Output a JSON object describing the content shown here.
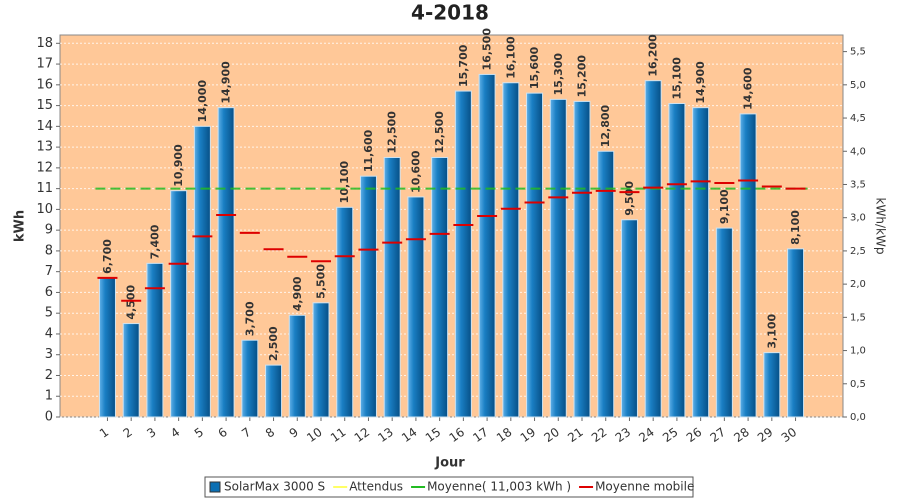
{
  "chart_data": {
    "type": "bar",
    "title": "4-2018",
    "x_label": "Jour",
    "y_label": "kWh",
    "y2_label": "kWh/kWp",
    "categories": [
      "1",
      "2",
      "3",
      "4",
      "5",
      "6",
      "7",
      "8",
      "9",
      "10",
      "11",
      "12",
      "13",
      "14",
      "15",
      "16",
      "17",
      "18",
      "19",
      "20",
      "21",
      "22",
      "23",
      "24",
      "25",
      "26",
      "27",
      "28",
      "29",
      "30"
    ],
    "ylim": [
      0,
      18.4
    ],
    "yticks": [
      0,
      1,
      2,
      3,
      4,
      5,
      6,
      7,
      8,
      9,
      10,
      11,
      12,
      13,
      14,
      15,
      16,
      17,
      18
    ],
    "y2lim": [
      0,
      5.75
    ],
    "y2ticks": [
      {
        "value": 0,
        "label": "0,0"
      },
      {
        "value": 0.5,
        "label": "0,5"
      },
      {
        "value": 1,
        "label": "1,0"
      },
      {
        "value": 1.5,
        "label": "1,5"
      },
      {
        "value": 2,
        "label": "2,0"
      },
      {
        "value": 2.5,
        "label": "2,5"
      },
      {
        "value": 3,
        "label": "3,0"
      },
      {
        "value": 3.5,
        "label": "3,5"
      },
      {
        "value": 4,
        "label": "4,0"
      },
      {
        "value": 4.5,
        "label": "4,5"
      },
      {
        "value": 5,
        "label": "5,0"
      },
      {
        "value": 5.5,
        "label": "5,5"
      }
    ],
    "grid": true,
    "series": [
      {
        "name": "SolarMax 3000 S",
        "color": "#0b6fb3",
        "values": [
          6.7,
          4.5,
          7.4,
          10.9,
          14.0,
          14.9,
          3.7,
          2.5,
          4.9,
          5.5,
          10.1,
          11.6,
          12.5,
          10.6,
          12.5,
          15.7,
          16.5,
          16.1,
          15.6,
          15.3,
          15.2,
          12.8,
          9.5,
          16.2,
          15.1,
          14.9,
          9.1,
          14.6,
          3.1,
          8.1
        ],
        "value_labels": [
          "6,700",
          "4,500",
          "7,400",
          "10,900",
          "14,000",
          "14,900",
          "3,700",
          "2,500",
          "4,900",
          "5,500",
          "10,100",
          "11,600",
          "12,500",
          "10,600",
          "12,500",
          "15,700",
          "16,500",
          "16,100",
          "15,600",
          "15,300",
          "15,200",
          "12,800",
          "9,500",
          "16,200",
          "15,100",
          "14,900",
          "9,100",
          "14,600",
          "3,100",
          "8,100"
        ]
      },
      {
        "name": "Attendus",
        "color": "#ffff66"
      },
      {
        "name": "Moyenne( 11,003 kWh )",
        "color": "#22bb22",
        "value": 11.003
      },
      {
        "name": "Moyenne mobile",
        "color": "#dd0000",
        "values": [
          6.7,
          5.6,
          6.2,
          7.38,
          8.7,
          9.73,
          8.87,
          8.08,
          7.72,
          7.5,
          7.74,
          8.06,
          8.4,
          8.56,
          8.82,
          9.25,
          9.68,
          10.03,
          10.33,
          10.58,
          10.8,
          10.89,
          10.83,
          11.05,
          11.21,
          11.35,
          11.27,
          11.39,
          11.1,
          11.0
        ]
      }
    ]
  }
}
